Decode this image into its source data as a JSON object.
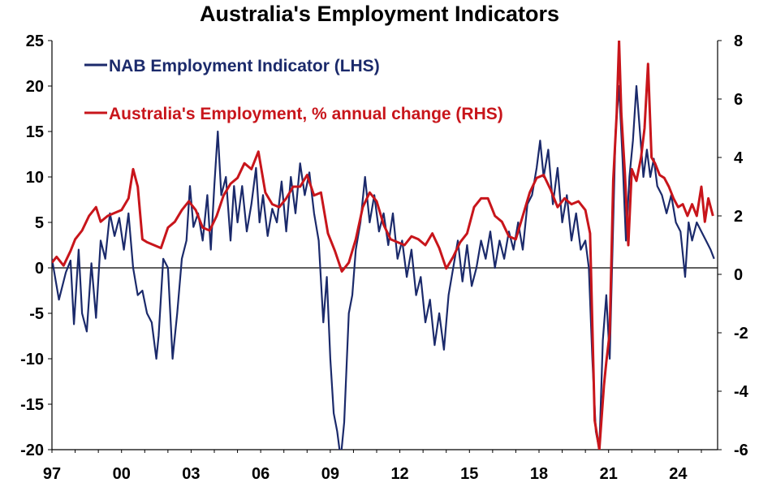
{
  "chart_data": {
    "type": "line",
    "title": "Australia's Employment Indicators",
    "x_tick_labels": [
      "97",
      "00",
      "03",
      "06",
      "09",
      "12",
      "15",
      "18",
      "21",
      "24"
    ],
    "x_range": [
      1997.0,
      2025.7
    ],
    "left_axis": {
      "range": [
        -20,
        25
      ],
      "ticks": [
        25,
        20,
        15,
        10,
        5,
        0,
        -5,
        -10,
        -15,
        -20
      ]
    },
    "right_axis": {
      "range": [
        -6,
        8
      ],
      "ticks": [
        8,
        6,
        4,
        2,
        0,
        -2,
        -4,
        -6
      ]
    },
    "legend_position": "top-left",
    "series": [
      {
        "name": "NAB Employment Indicator (LHS)",
        "axis": "left",
        "color": "#1b2a6b",
        "points": [
          [
            1997.0,
            1.0
          ],
          [
            1997.3,
            -3.5
          ],
          [
            1997.6,
            -0.5
          ],
          [
            1997.8,
            0.8
          ],
          [
            1997.95,
            -6.2
          ],
          [
            1998.15,
            2.0
          ],
          [
            1998.3,
            -5.0
          ],
          [
            1998.5,
            -7.0
          ],
          [
            1998.7,
            0.5
          ],
          [
            1998.9,
            -5.5
          ],
          [
            1999.1,
            3.0
          ],
          [
            1999.3,
            1.0
          ],
          [
            1999.5,
            6.0
          ],
          [
            1999.7,
            3.5
          ],
          [
            1999.9,
            5.5
          ],
          [
            2000.1,
            2.0
          ],
          [
            2000.3,
            6.0
          ],
          [
            2000.5,
            0.0
          ],
          [
            2000.7,
            -3.0
          ],
          [
            2000.9,
            -2.5
          ],
          [
            2001.1,
            -5.0
          ],
          [
            2001.3,
            -6.0
          ],
          [
            2001.5,
            -10.0
          ],
          [
            2001.6,
            -7.5
          ],
          [
            2001.8,
            1.0
          ],
          [
            2002.0,
            0.0
          ],
          [
            2002.2,
            -10.0
          ],
          [
            2002.4,
            -5.0
          ],
          [
            2002.6,
            1.0
          ],
          [
            2002.8,
            3.0
          ],
          [
            2002.95,
            9.0
          ],
          [
            2003.1,
            4.5
          ],
          [
            2003.3,
            6.0
          ],
          [
            2003.5,
            3.0
          ],
          [
            2003.7,
            8.0
          ],
          [
            2003.85,
            2.0
          ],
          [
            2004.0,
            9.0
          ],
          [
            2004.15,
            15.0
          ],
          [
            2004.3,
            8.0
          ],
          [
            2004.5,
            10.0
          ],
          [
            2004.7,
            3.0
          ],
          [
            2004.85,
            9.0
          ],
          [
            2005.0,
            5.0
          ],
          [
            2005.2,
            9.0
          ],
          [
            2005.4,
            4.0
          ],
          [
            2005.6,
            7.0
          ],
          [
            2005.8,
            11.0
          ],
          [
            2005.95,
            5.0
          ],
          [
            2006.1,
            8.0
          ],
          [
            2006.3,
            3.5
          ],
          [
            2006.5,
            6.5
          ],
          [
            2006.7,
            5.0
          ],
          [
            2006.9,
            9.5
          ],
          [
            2007.1,
            4.0
          ],
          [
            2007.3,
            10.0
          ],
          [
            2007.5,
            6.0
          ],
          [
            2007.7,
            11.5
          ],
          [
            2007.9,
            8.0
          ],
          [
            2008.1,
            10.5
          ],
          [
            2008.3,
            6.0
          ],
          [
            2008.5,
            3.0
          ],
          [
            2008.7,
            -6.0
          ],
          [
            2008.85,
            -1.0
          ],
          [
            2009.0,
            -10.0
          ],
          [
            2009.15,
            -16.0
          ],
          [
            2009.3,
            -18.0
          ],
          [
            2009.45,
            -21.0
          ],
          [
            2009.6,
            -17.0
          ],
          [
            2009.8,
            -5.0
          ],
          [
            2009.95,
            -3.0
          ],
          [
            2010.1,
            2.0
          ],
          [
            2010.3,
            5.0
          ],
          [
            2010.5,
            10.0
          ],
          [
            2010.7,
            5.0
          ],
          [
            2010.9,
            8.0
          ],
          [
            2011.1,
            4.0
          ],
          [
            2011.3,
            6.0
          ],
          [
            2011.5,
            2.5
          ],
          [
            2011.7,
            6.0
          ],
          [
            2011.9,
            1.0
          ],
          [
            2012.1,
            3.0
          ],
          [
            2012.3,
            -1.0
          ],
          [
            2012.5,
            2.0
          ],
          [
            2012.7,
            -3.0
          ],
          [
            2012.9,
            -1.0
          ],
          [
            2013.1,
            -6.0
          ],
          [
            2013.3,
            -3.5
          ],
          [
            2013.5,
            -8.5
          ],
          [
            2013.7,
            -5.0
          ],
          [
            2013.9,
            -9.0
          ],
          [
            2014.1,
            -3.0
          ],
          [
            2014.3,
            0.0
          ],
          [
            2014.5,
            3.0
          ],
          [
            2014.7,
            -1.5
          ],
          [
            2014.9,
            2.5
          ],
          [
            2015.1,
            -2.0
          ],
          [
            2015.3,
            0.0
          ],
          [
            2015.5,
            3.0
          ],
          [
            2015.7,
            1.0
          ],
          [
            2015.9,
            4.0
          ],
          [
            2016.1,
            0.0
          ],
          [
            2016.3,
            3.0
          ],
          [
            2016.5,
            1.0
          ],
          [
            2016.7,
            4.0
          ],
          [
            2016.9,
            2.0
          ],
          [
            2017.1,
            5.0
          ],
          [
            2017.3,
            2.0
          ],
          [
            2017.5,
            7.0
          ],
          [
            2017.7,
            8.0
          ],
          [
            2017.9,
            11.0
          ],
          [
            2018.05,
            14.0
          ],
          [
            2018.2,
            10.0
          ],
          [
            2018.4,
            13.0
          ],
          [
            2018.6,
            7.0
          ],
          [
            2018.8,
            11.0
          ],
          [
            2019.0,
            5.0
          ],
          [
            2019.2,
            8.0
          ],
          [
            2019.4,
            3.0
          ],
          [
            2019.6,
            6.0
          ],
          [
            2019.8,
            2.0
          ],
          [
            2020.0,
            3.0
          ],
          [
            2020.15,
            0.0
          ],
          [
            2020.3,
            -10.0
          ],
          [
            2020.45,
            -18.0
          ],
          [
            2020.6,
            -20.0
          ],
          [
            2020.75,
            -8.0
          ],
          [
            2020.9,
            -3.0
          ],
          [
            2021.05,
            -10.0
          ],
          [
            2021.2,
            5.0
          ],
          [
            2021.3,
            15.0
          ],
          [
            2021.45,
            20.0
          ],
          [
            2021.6,
            12.0
          ],
          [
            2021.75,
            3.0
          ],
          [
            2021.9,
            10.0
          ],
          [
            2022.05,
            14.0
          ],
          [
            2022.2,
            20.0
          ],
          [
            2022.35,
            15.0
          ],
          [
            2022.5,
            10.0
          ],
          [
            2022.65,
            13.0
          ],
          [
            2022.8,
            10.0
          ],
          [
            2022.95,
            12.0
          ],
          [
            2023.1,
            9.0
          ],
          [
            2023.3,
            8.0
          ],
          [
            2023.5,
            6.0
          ],
          [
            2023.7,
            8.0
          ],
          [
            2023.9,
            5.0
          ],
          [
            2024.1,
            4.0
          ],
          [
            2024.3,
            -1.0
          ],
          [
            2024.45,
            5.0
          ],
          [
            2024.6,
            3.0
          ],
          [
            2024.8,
            5.0
          ],
          [
            2025.0,
            4.0
          ],
          [
            2025.2,
            3.0
          ],
          [
            2025.4,
            2.0
          ],
          [
            2025.55,
            1.0
          ]
        ]
      },
      {
        "name": "Australia's Employment, % annual change (RHS)",
        "axis": "right",
        "color": "#c8151b",
        "points": [
          [
            1997.0,
            0.4
          ],
          [
            1997.2,
            0.6
          ],
          [
            1997.5,
            0.3
          ],
          [
            1997.8,
            0.8
          ],
          [
            1998.0,
            1.2
          ],
          [
            1998.3,
            1.5
          ],
          [
            1998.6,
            2.0
          ],
          [
            1998.9,
            2.3
          ],
          [
            1999.1,
            1.8
          ],
          [
            1999.4,
            2.0
          ],
          [
            1999.7,
            2.1
          ],
          [
            2000.0,
            2.2
          ],
          [
            2000.3,
            2.6
          ],
          [
            2000.5,
            3.6
          ],
          [
            2000.7,
            3.0
          ],
          [
            2000.9,
            1.2
          ],
          [
            2001.1,
            1.1
          ],
          [
            2001.4,
            1.0
          ],
          [
            2001.7,
            0.9
          ],
          [
            2002.0,
            1.6
          ],
          [
            2002.3,
            1.8
          ],
          [
            2002.6,
            2.2
          ],
          [
            2002.9,
            2.5
          ],
          [
            2003.2,
            2.2
          ],
          [
            2003.5,
            1.6
          ],
          [
            2003.8,
            1.5
          ],
          [
            2004.1,
            2.0
          ],
          [
            2004.4,
            2.7
          ],
          [
            2004.7,
            3.1
          ],
          [
            2005.0,
            3.3
          ],
          [
            2005.3,
            3.8
          ],
          [
            2005.6,
            3.6
          ],
          [
            2005.9,
            4.2
          ],
          [
            2006.2,
            2.8
          ],
          [
            2006.5,
            2.4
          ],
          [
            2006.8,
            2.3
          ],
          [
            2007.1,
            2.6
          ],
          [
            2007.4,
            3.0
          ],
          [
            2007.7,
            3.0
          ],
          [
            2008.0,
            3.4
          ],
          [
            2008.3,
            2.7
          ],
          [
            2008.6,
            2.8
          ],
          [
            2008.9,
            1.4
          ],
          [
            2009.2,
            0.8
          ],
          [
            2009.5,
            0.1
          ],
          [
            2009.8,
            0.4
          ],
          [
            2010.1,
            1.2
          ],
          [
            2010.4,
            2.3
          ],
          [
            2010.7,
            2.8
          ],
          [
            2011.0,
            2.5
          ],
          [
            2011.3,
            1.7
          ],
          [
            2011.6,
            1.2
          ],
          [
            2011.9,
            1.1
          ],
          [
            2012.2,
            1.0
          ],
          [
            2012.5,
            1.3
          ],
          [
            2012.8,
            1.2
          ],
          [
            2013.1,
            1.0
          ],
          [
            2013.4,
            1.4
          ],
          [
            2013.7,
            0.9
          ],
          [
            2014.0,
            0.2
          ],
          [
            2014.3,
            0.6
          ],
          [
            2014.6,
            1.1
          ],
          [
            2014.9,
            1.4
          ],
          [
            2015.2,
            2.3
          ],
          [
            2015.5,
            2.6
          ],
          [
            2015.8,
            2.6
          ],
          [
            2016.1,
            2.0
          ],
          [
            2016.4,
            1.8
          ],
          [
            2016.7,
            1.3
          ],
          [
            2017.0,
            1.2
          ],
          [
            2017.3,
            2.0
          ],
          [
            2017.6,
            2.8
          ],
          [
            2017.9,
            3.3
          ],
          [
            2018.2,
            3.4
          ],
          [
            2018.5,
            2.9
          ],
          [
            2018.8,
            2.3
          ],
          [
            2019.1,
            2.6
          ],
          [
            2019.4,
            2.4
          ],
          [
            2019.7,
            2.5
          ],
          [
            2020.0,
            2.2
          ],
          [
            2020.2,
            1.4
          ],
          [
            2020.4,
            -5.0
          ],
          [
            2020.6,
            -6.0
          ],
          [
            2020.8,
            -3.8
          ],
          [
            2020.9,
            -3.0
          ],
          [
            2021.05,
            -2.0
          ],
          [
            2021.2,
            3.2
          ],
          [
            2021.35,
            5.5
          ],
          [
            2021.45,
            8.0
          ],
          [
            2021.55,
            5.5
          ],
          [
            2021.7,
            3.5
          ],
          [
            2021.85,
            1.0
          ],
          [
            2022.0,
            3.6
          ],
          [
            2022.2,
            3.2
          ],
          [
            2022.4,
            4.0
          ],
          [
            2022.55,
            5.0
          ],
          [
            2022.7,
            7.2
          ],
          [
            2022.85,
            4.0
          ],
          [
            2023.0,
            3.8
          ],
          [
            2023.2,
            3.4
          ],
          [
            2023.4,
            3.3
          ],
          [
            2023.6,
            3.0
          ],
          [
            2023.8,
            2.6
          ],
          [
            2024.0,
            2.3
          ],
          [
            2024.2,
            2.4
          ],
          [
            2024.4,
            2.0
          ],
          [
            2024.6,
            2.4
          ],
          [
            2024.8,
            2.0
          ],
          [
            2025.0,
            3.0
          ],
          [
            2025.15,
            1.8
          ],
          [
            2025.3,
            2.6
          ],
          [
            2025.5,
            2.0
          ]
        ]
      }
    ]
  }
}
